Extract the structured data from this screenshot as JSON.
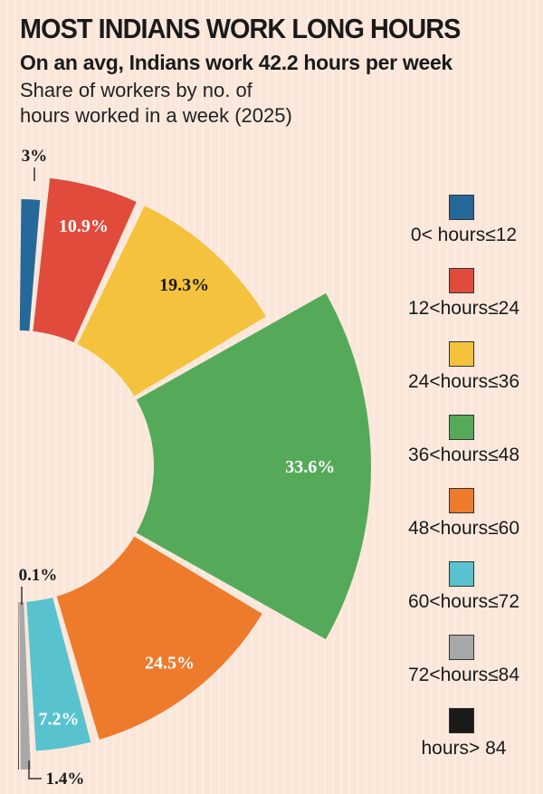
{
  "header": {
    "title": "MOST INDIANS WORK LONG HOURS",
    "subtitle": "On an avg, Indians work 42.2 hours per week",
    "description_line1": "Share of workers by no. of",
    "description_line2": "hours worked in a week (2025)"
  },
  "chart_data": {
    "type": "pie",
    "title": "MOST INDIANS WORK LONG HOURS",
    "subtitle": "On an avg, Indians work 42.2 hours per week",
    "categories": [
      "0< hours≤12",
      "12<hours≤24",
      "24<hours≤36",
      "36<hours≤48",
      "48<hours≤60",
      "60<hours≤72",
      "72<hours≤84",
      "hours> 84"
    ],
    "values": [
      3,
      10.9,
      19.3,
      33.6,
      24.5,
      7.2,
      1.4,
      0.1
    ],
    "labels": [
      "3%",
      "10.9%",
      "19.3%",
      "33.6%",
      "24.5%",
      "7.2%",
      "1.4%",
      "0.1%"
    ],
    "colors": [
      "#25699a",
      "#e04b3c",
      "#f5c23d",
      "#55aa5a",
      "#ee7a2c",
      "#58c3cf",
      "#a8a8a8",
      "#1a1a1a"
    ],
    "legend_position": "right"
  }
}
